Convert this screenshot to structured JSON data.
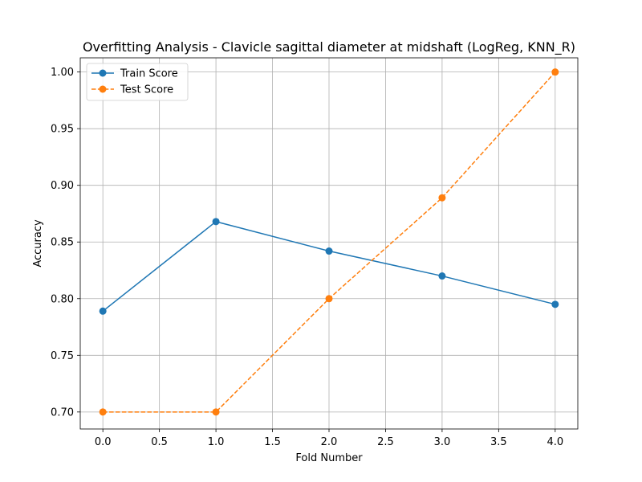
{
  "chart_data": {
    "type": "line",
    "title": "Overfitting Analysis - Clavicle sagittal diameter at midshaft (LogReg, KNN_R)",
    "xlabel": "Fold Number",
    "ylabel": "Accuracy",
    "xlim": [
      -0.2,
      4.2
    ],
    "ylim": [
      0.685,
      1.0125
    ],
    "x_ticks": [
      0.0,
      0.5,
      1.0,
      1.5,
      2.0,
      2.5,
      3.0,
      3.5,
      4.0
    ],
    "x_tick_labels": [
      "0.0",
      "0.5",
      "1.0",
      "1.5",
      "2.0",
      "2.5",
      "3.0",
      "3.5",
      "4.0"
    ],
    "y_ticks": [
      0.7,
      0.75,
      0.8,
      0.85,
      0.9,
      0.95,
      1.0
    ],
    "y_tick_labels": [
      "0.70",
      "0.75",
      "0.80",
      "0.85",
      "0.90",
      "0.95",
      "1.00"
    ],
    "grid": true,
    "legend_position": "top-left",
    "x": [
      0,
      1,
      2,
      3,
      4
    ],
    "series": [
      {
        "name": "Train Score",
        "values": [
          0.789,
          0.868,
          0.842,
          0.82,
          0.795
        ],
        "color": "#1f77b4",
        "line_style": "solid",
        "marker": "circle"
      },
      {
        "name": "Test Score",
        "values": [
          0.7,
          0.7,
          0.8,
          0.889,
          1.0
        ],
        "color": "#ff7f0e",
        "line_style": "dashed",
        "marker": "circle"
      }
    ]
  }
}
